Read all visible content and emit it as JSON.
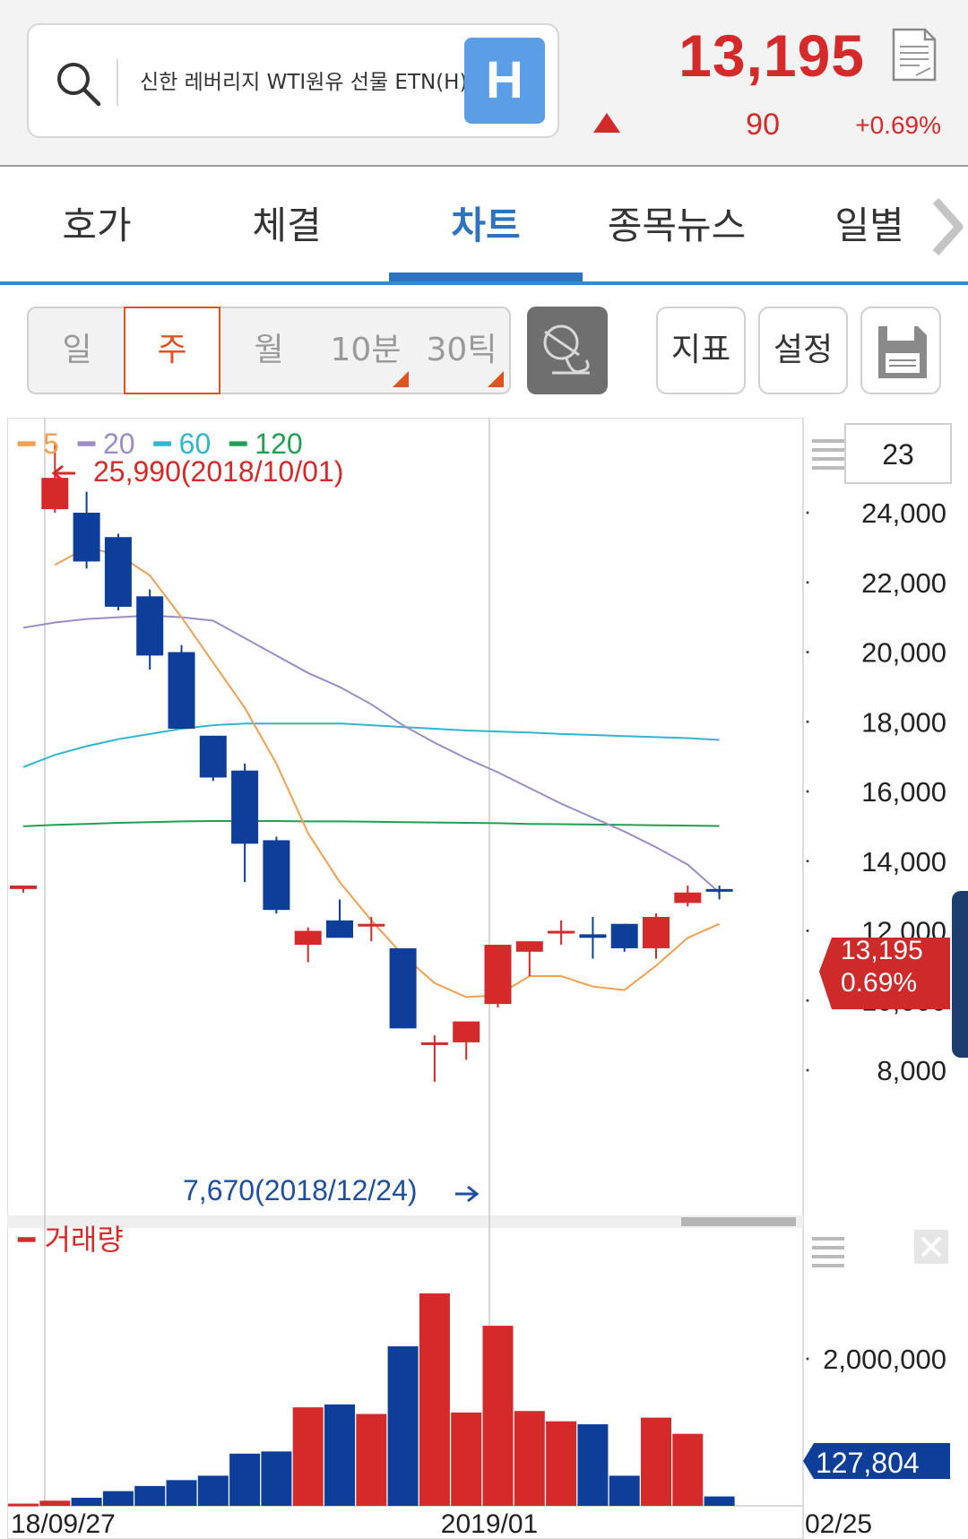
{
  "header": {
    "stock_name": "신한 레버리지 WTI원유 선물 ETN(H)",
    "badge": "H",
    "price": "13,195",
    "change": "90",
    "change_rate": "+0.69%",
    "direction": "up",
    "up_color": "#d42a2a",
    "icons": {
      "search": "search-icon",
      "document": "document-icon"
    }
  },
  "tabs": [
    {
      "label": "호가"
    },
    {
      "label": "체결"
    },
    {
      "label": "차트",
      "active": true
    },
    {
      "label": "종목뉴스"
    },
    {
      "label": "일별"
    }
  ],
  "toolbar": {
    "periods": [
      "일",
      "주",
      "월",
      "10분",
      "30틱"
    ],
    "selected_period": "주",
    "indicator_label": "지표",
    "settings_label": "설정",
    "icons": {
      "draw": "draw-tool-icon",
      "save": "save-icon"
    }
  },
  "chart": {
    "legend": [
      {
        "label": "5",
        "color": "#f0a050"
      },
      {
        "label": "20",
        "color": "#9b8cc8"
      },
      {
        "label": "60",
        "color": "#30b6d0"
      },
      {
        "label": "120",
        "color": "#20a050"
      }
    ],
    "period_count": "23",
    "high_label": "25,990(2018/10/01)",
    "low_label": "7,670(2018/12/24)",
    "current_price_flag": "13,195",
    "current_rate_flag": "0.69%",
    "volume_title": "거래량",
    "volume_flag": "127,804",
    "price_axis": [
      "24,000",
      "22,000",
      "20,000",
      "18,000",
      "16,000",
      "14,000",
      "12,000",
      "10,000",
      "8,000"
    ],
    "volume_axis": [
      "2,000,000"
    ],
    "x_labels": [
      "18/09/27",
      "2019/01",
      "02/25"
    ],
    "up_color": "#d42a2a",
    "down_color": "#0d3f9a"
  },
  "chart_data": {
    "type": "candlestick",
    "period": "weekly",
    "ylim": [
      7000,
      26500
    ],
    "volume_ylim": [
      0,
      3000000
    ],
    "candles": [
      {
        "o": 13200,
        "h": 13300,
        "l": 13100,
        "c": 13300
      },
      {
        "o": 24100,
        "h": 25990,
        "l": 24000,
        "c": 25000
      },
      {
        "o": 24000,
        "h": 24600,
        "l": 22400,
        "c": 22600
      },
      {
        "o": 23300,
        "h": 23400,
        "l": 21200,
        "c": 21300
      },
      {
        "o": 21600,
        "h": 21800,
        "l": 19500,
        "c": 19900
      },
      {
        "o": 20000,
        "h": 20200,
        "l": 17800,
        "c": 17800
      },
      {
        "o": 17600,
        "h": 17600,
        "l": 16300,
        "c": 16400
      },
      {
        "o": 16600,
        "h": 16800,
        "l": 13400,
        "c": 14500
      },
      {
        "o": 14600,
        "h": 14700,
        "l": 12500,
        "c": 12600
      },
      {
        "o": 11600,
        "h": 12100,
        "l": 11100,
        "c": 12000
      },
      {
        "o": 12300,
        "h": 12900,
        "l": 11900,
        "c": 11800
      },
      {
        "o": 12200,
        "h": 12400,
        "l": 11700,
        "c": 12200
      },
      {
        "o": 11500,
        "h": 11500,
        "l": 9200,
        "c": 9200
      },
      {
        "o": 8800,
        "h": 9000,
        "l": 7670,
        "c": 8800
      },
      {
        "o": 8800,
        "h": 9400,
        "l": 8300,
        "c": 9400
      },
      {
        "o": 9900,
        "h": 11600,
        "l": 9800,
        "c": 11600
      },
      {
        "o": 11400,
        "h": 11700,
        "l": 10700,
        "c": 11700
      },
      {
        "o": 12000,
        "h": 12300,
        "l": 11600,
        "c": 12000
      },
      {
        "o": 11900,
        "h": 12400,
        "l": 11200,
        "c": 11800
      },
      {
        "o": 12200,
        "h": 12200,
        "l": 11400,
        "c": 11500
      },
      {
        "o": 11500,
        "h": 12500,
        "l": 11200,
        "c": 12400
      },
      {
        "o": 12800,
        "h": 13300,
        "l": 12700,
        "c": 13100
      },
      {
        "o": 13200,
        "h": 13300,
        "l": 12900,
        "c": 13195
      }
    ],
    "ma5": [
      null,
      22500,
      23000,
      22800,
      22200,
      21000,
      19700,
      18400,
      16800,
      14800,
      13400,
      12300,
      11300,
      10500,
      10100,
      10150,
      10700,
      10700,
      10400,
      10300,
      11000,
      11800,
      12200
    ],
    "ma20": [
      20700,
      20850,
      20950,
      21000,
      21050,
      21000,
      20900,
      20400,
      19900,
      19400,
      19000,
      18500,
      17900,
      17400,
      16950,
      16550,
      16100,
      15650,
      15250,
      14850,
      14400,
      13900,
      13100
    ],
    "ma60": [
      16700,
      17050,
      17300,
      17500,
      17650,
      17800,
      17900,
      17950,
      17950,
      17950,
      17950,
      17900,
      17850,
      17800,
      17750,
      17720,
      17690,
      17650,
      17620,
      17590,
      17560,
      17530,
      17480
    ],
    "ma120": [
      15000,
      15040,
      15070,
      15100,
      15120,
      15140,
      15150,
      15150,
      15150,
      15140,
      15140,
      15130,
      15120,
      15110,
      15100,
      15090,
      15070,
      15060,
      15050,
      15040,
      15030,
      15020,
      15010
    ],
    "volume": [
      30000,
      70000,
      110000,
      200000,
      270000,
      350000,
      410000,
      710000,
      740000,
      1340000,
      1380000,
      1250000,
      2170000,
      2890000,
      1270000,
      2450000,
      1290000,
      1150000,
      1110000,
      410000,
      1200000,
      980000,
      127804
    ]
  }
}
